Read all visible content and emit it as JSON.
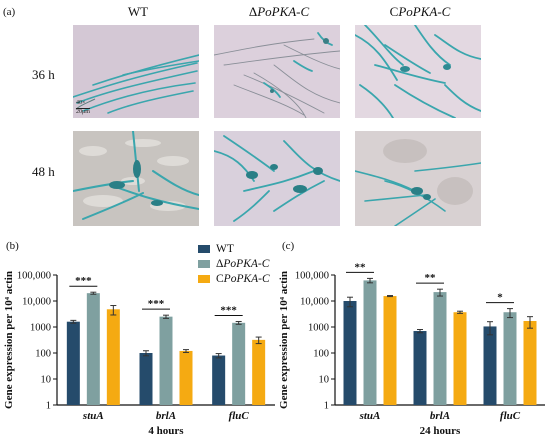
{
  "panel_a": {
    "label": "(a)",
    "columns": [
      {
        "prefix": "",
        "italic": "",
        "suffix": "WT"
      },
      {
        "prefix": "Δ",
        "italic": "PoPKA-C",
        "suffix": ""
      },
      {
        "prefix": "C",
        "italic": "PoPKA-C",
        "suffix": ""
      }
    ],
    "rows": [
      "36 h",
      "48 h"
    ],
    "magnification": "40×",
    "scale_bar": "20μm"
  },
  "legend": {
    "items": [
      {
        "prefix": "",
        "italic": "",
        "suffix": "WT",
        "color": "#254b6b"
      },
      {
        "prefix": "Δ",
        "italic": "PoPKA-C",
        "suffix": "",
        "color": "#7fa0a0"
      },
      {
        "prefix": "C",
        "italic": "PoPKA-C",
        "suffix": "",
        "color": "#f5aa12"
      }
    ]
  },
  "chart_data": [
    {
      "panel": "(b)",
      "type": "bar",
      "scale": "log",
      "ylabel": "Gene expression per 10⁴ actin",
      "xlabel": "4 hours",
      "yticks": [
        "1",
        "10",
        "100",
        "1000",
        "10,000",
        "100,000"
      ],
      "ylim": [
        1,
        100000
      ],
      "categories": [
        "stuA",
        "brlA",
        "fluC"
      ],
      "series": [
        {
          "name": "WT",
          "values": [
            1600,
            100,
            80
          ],
          "errors": [
            200,
            22,
            15
          ]
        },
        {
          "name": "ΔPoPKA-C",
          "values": [
            20000,
            2500,
            1450
          ],
          "errors": [
            1800,
            350,
            180
          ]
        },
        {
          "name": "CPoPKA-C",
          "values": [
            4800,
            120,
            320
          ],
          "errors": [
            1900,
            15,
            90
          ]
        }
      ],
      "annotations": [
        "***",
        "***",
        "***"
      ]
    },
    {
      "panel": "(c)",
      "type": "bar",
      "scale": "log",
      "ylabel": "Gene expression per 10⁴ actin",
      "xlabel": "24 hours",
      "yticks": [
        "1",
        "10",
        "100",
        "1000",
        "10,000",
        "100,000"
      ],
      "ylim": [
        1,
        100000
      ],
      "categories": [
        "stuA",
        "brlA",
        "fluC"
      ],
      "series": [
        {
          "name": "WT",
          "values": [
            10000,
            700,
            1050
          ],
          "errors": [
            4000,
            100,
            550
          ]
        },
        {
          "name": "ΔPoPKA-C",
          "values": [
            62000,
            22000,
            3700
          ],
          "errors": [
            12000,
            6500,
            1400
          ]
        },
        {
          "name": "CPoPKA-C",
          "values": [
            15500,
            3700,
            1700
          ],
          "errors": [
            700,
            350,
            800
          ]
        }
      ],
      "annotations": [
        "**",
        "**",
        "*"
      ]
    }
  ]
}
